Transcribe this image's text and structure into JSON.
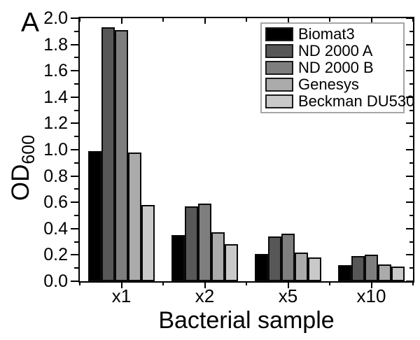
{
  "figure": {
    "background": "#ffffff",
    "axis_color": "#000000"
  },
  "chart_data": {
    "type": "bar",
    "panel_label": "A",
    "title": "",
    "xlabel": "Bacterial sample",
    "ylabel": "OD",
    "ylabel_subscript": "600",
    "categories": [
      "x1",
      "x2",
      "x5",
      "x10"
    ],
    "series": [
      {
        "name": "Biomat3",
        "color": "#000000",
        "values": [
          0.99,
          0.35,
          0.21,
          0.12
        ]
      },
      {
        "name": "ND 2000 A",
        "color": "#575757",
        "values": [
          1.93,
          0.57,
          0.34,
          0.19
        ]
      },
      {
        "name": "ND 2000 B",
        "color": "#7e7e7e",
        "values": [
          1.91,
          0.59,
          0.36,
          0.2
        ]
      },
      {
        "name": "Genesys",
        "color": "#ababab",
        "values": [
          0.98,
          0.37,
          0.22,
          0.13
        ]
      },
      {
        "name": "Beckman DU530",
        "color": "#c9c9c9",
        "values": [
          0.58,
          0.28,
          0.18,
          0.11
        ]
      }
    ],
    "ylim": [
      0.0,
      2.0
    ],
    "ytick_step": 0.2,
    "yminor_step": 0.1,
    "ytick_labels": [
      "0.0",
      "0.2",
      "0.4",
      "0.6",
      "0.8",
      "1.0",
      "1.2",
      "1.4",
      "1.6",
      "1.8",
      "2.0"
    ],
    "legend_position": "top-right",
    "grid": false
  }
}
